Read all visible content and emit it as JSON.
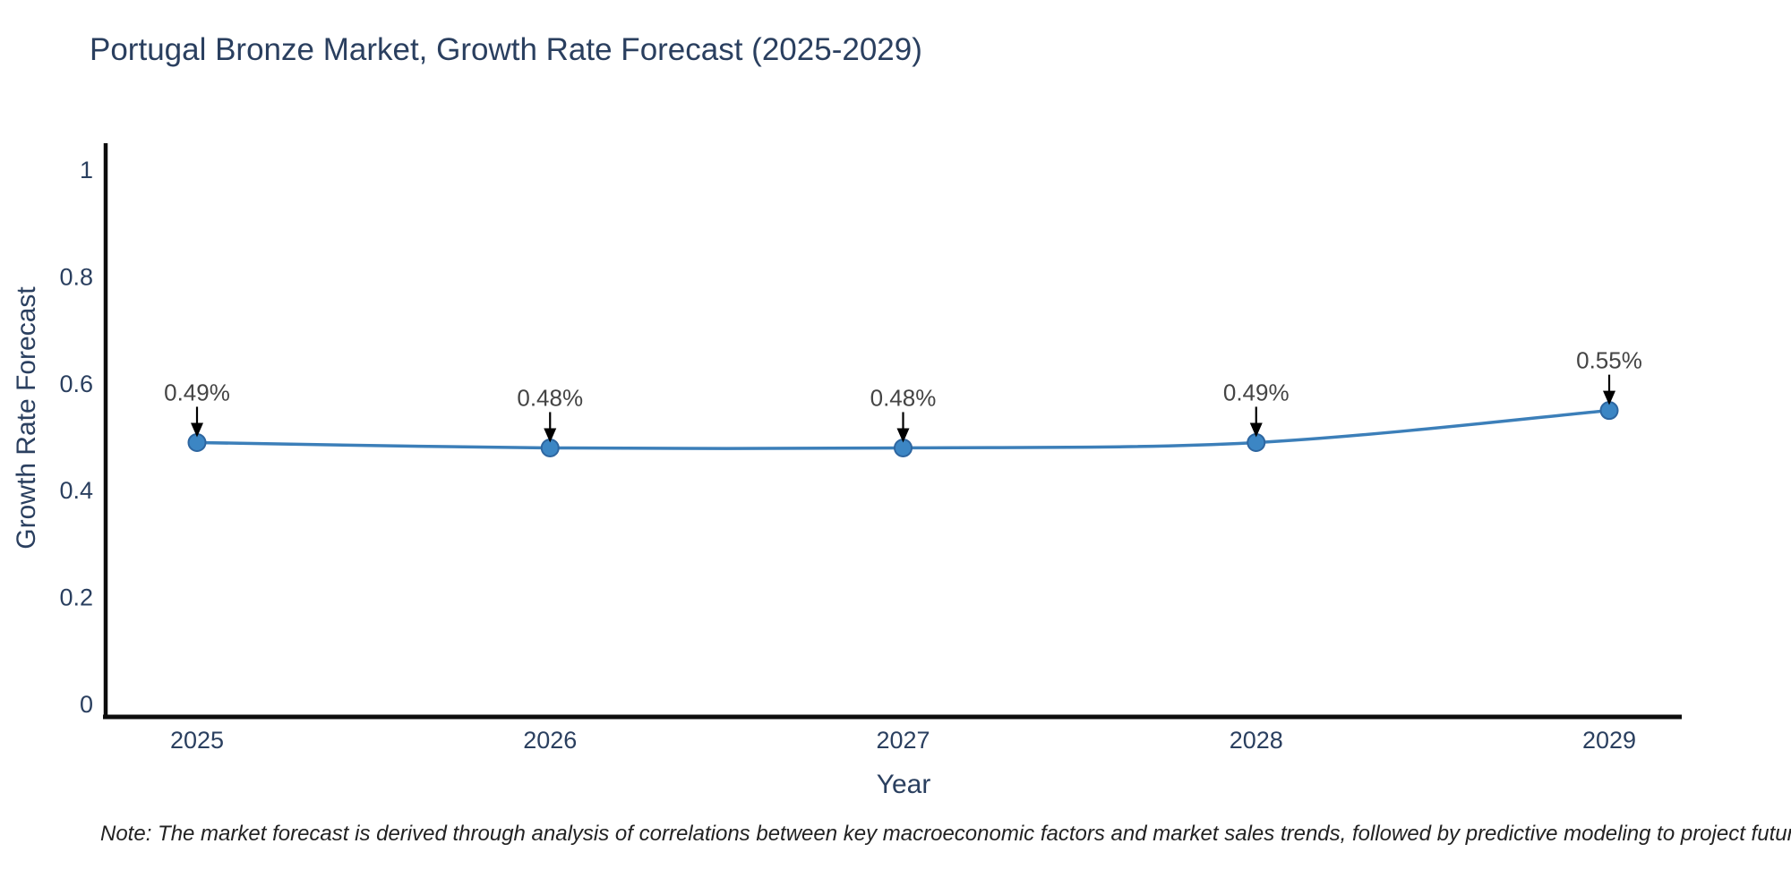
{
  "note": "Note: The market forecast is derived through analysis of correlations between key macroeconomic factors and market sales trends, followed by predictive modeling to project future sales",
  "chart_data": {
    "type": "line",
    "title": "Portugal Bronze Market, Growth Rate Forecast (2025-2029)",
    "xlabel": "Year",
    "ylabel": "Growth Rate Forecast",
    "categories": [
      "2025",
      "2026",
      "2027",
      "2028",
      "2029"
    ],
    "series": [
      {
        "name": "Growth Rate Forecast",
        "values": [
          0.49,
          0.48,
          0.48,
          0.49,
          0.55
        ]
      }
    ],
    "point_labels": [
      "0.49%",
      "0.48%",
      "0.48%",
      "0.49%",
      "0.55%"
    ],
    "ylim": [
      0,
      1
    ],
    "y_ticks": [
      0,
      0.2,
      0.4,
      0.6,
      0.8,
      1
    ],
    "y_tick_labels": [
      "0",
      "0.2",
      "0.4",
      "0.6",
      "0.8",
      "1"
    ],
    "grid": false,
    "legend": "none",
    "line_shape": "spline",
    "annotation_arrows": "down-to-point",
    "colors": {
      "line": "#3c7fb9",
      "marker_fill": "#3c86c4",
      "marker_edge": "#2e66a0",
      "axis": "#0d0d0d",
      "tick_text": "#2a3f5f",
      "annotation_text": "#444444",
      "arrow": "#000000",
      "title_text": "#2a3f5f"
    }
  }
}
